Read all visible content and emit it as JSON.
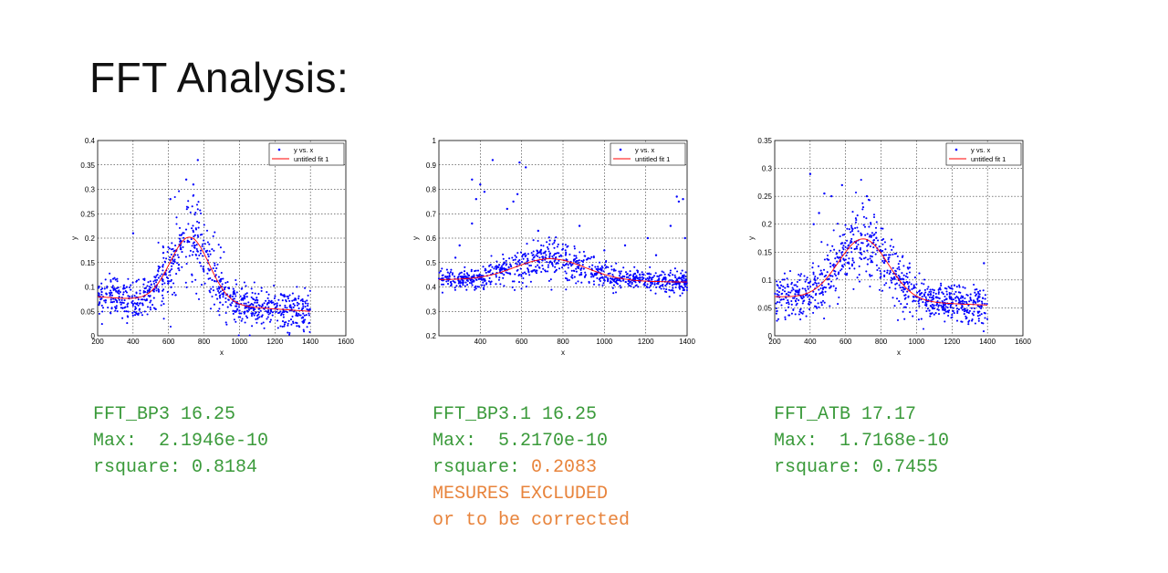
{
  "slide": {
    "title": "FFT Analysis:"
  },
  "panels": [
    {
      "name": "FFT_BP3",
      "line1": "FFT_BP3 16.25",
      "line2": "Max:  2.1946e-10",
      "line3_label": "rsquare: ",
      "line3_value": "0.8184",
      "note1": "",
      "note2": ""
    },
    {
      "name": "FFT_BP3.1",
      "line1": "FFT_BP3.1 16.25",
      "line2": "Max:  5.2170e-10",
      "line3_label": "rsquare: ",
      "line3_value": "0.2083",
      "note1": "MESURES EXCLUDED",
      "note2": "or to be corrected"
    },
    {
      "name": "FFT_ATB",
      "line1": "FFT_ATB 17.17",
      "line2": "Max:  1.7168e-10",
      "line3_label": "rsquare: ",
      "line3_value": "0.7455",
      "note1": "",
      "note2": ""
    }
  ],
  "colors": {
    "points": "#0000ff",
    "fit": "#ff0000",
    "caption": "#3a9a3a",
    "warning": "#e8843c"
  },
  "chart_data": [
    {
      "type": "scatter",
      "xlabel": "x",
      "ylabel": "y",
      "xlim": [
        200,
        1600
      ],
      "ylim": [
        0,
        0.4
      ],
      "xticks": [
        200,
        400,
        600,
        800,
        1000,
        1200,
        1400,
        1600
      ],
      "yticks": [
        0,
        0.05,
        0.1,
        0.15,
        0.2,
        0.25,
        0.3,
        0.35,
        0.4
      ],
      "ytick_labels": [
        "0",
        "0.05",
        "0.1",
        "0.15",
        "0.2",
        "0.25",
        "0.3",
        "0.35",
        "0.4"
      ],
      "grid": true,
      "legend": "top-right",
      "series": [
        {
          "name": "y vs. x",
          "style": "points",
          "x_range": [
            200,
            1400
          ],
          "profile": {
            "base": 0.08,
            "base_end": 0.05,
            "peak": 0.215,
            "peak_x": 720,
            "width": 110,
            "noise": 0.02
          },
          "outliers": [
            [
              765,
              0.36
            ],
            [
              700,
              0.32
            ],
            [
              740,
              0.31
            ],
            [
              610,
              0.28
            ],
            [
              400,
              0.21
            ]
          ]
        },
        {
          "name": "untitled fit 1",
          "style": "line"
        }
      ]
    },
    {
      "type": "scatter",
      "xlabel": "x",
      "ylabel": "y",
      "xlim": [
        200,
        1400
      ],
      "ylim": [
        0.2,
        1.0
      ],
      "xticks": [
        400,
        600,
        800,
        1000,
        1200,
        1400
      ],
      "yticks": [
        0.2,
        0.3,
        0.4,
        0.5,
        0.6,
        0.7,
        0.8,
        0.9,
        1
      ],
      "ytick_labels": [
        "0.2",
        "0.3",
        "0.4",
        "0.5",
        "0.6",
        "0.7",
        "0.8",
        "0.9",
        "1"
      ],
      "grid": true,
      "legend": "top-right",
      "series": [
        {
          "name": "y vs. x",
          "style": "points",
          "x_range": [
            200,
            1400
          ],
          "profile": {
            "base": 0.43,
            "base_end": 0.42,
            "peak": 0.52,
            "peak_x": 740,
            "width": 170,
            "noise": 0.02
          },
          "outliers": [
            [
              360,
              0.84
            ],
            [
              460,
              0.92
            ],
            [
              590,
              0.91
            ],
            [
              620,
              0.89
            ],
            [
              400,
              0.82
            ],
            [
              420,
              0.79
            ],
            [
              380,
              0.76
            ],
            [
              580,
              0.78
            ],
            [
              360,
              0.66
            ],
            [
              530,
              0.72
            ],
            [
              560,
              0.75
            ],
            [
              880,
              0.65
            ],
            [
              1350,
              0.77
            ],
            [
              1380,
              0.76
            ],
            [
              1360,
              0.75
            ],
            [
              1390,
              0.6
            ],
            [
              1320,
              0.65
            ],
            [
              1210,
              0.6
            ],
            [
              1100,
              0.57
            ],
            [
              1000,
              0.55
            ],
            [
              300,
              0.57
            ],
            [
              680,
              0.63
            ],
            [
              760,
              0.59
            ],
            [
              280,
              0.52
            ],
            [
              1250,
              0.53
            ]
          ]
        },
        {
          "name": "untitled fit 1",
          "style": "line"
        }
      ]
    },
    {
      "type": "scatter",
      "xlabel": "x",
      "ylabel": "y",
      "xlim": [
        200,
        1600
      ],
      "ylim": [
        0,
        0.35
      ],
      "xticks": [
        200,
        400,
        600,
        800,
        1000,
        1200,
        1400,
        1600
      ],
      "yticks": [
        0,
        0.05,
        0.1,
        0.15,
        0.2,
        0.25,
        0.3,
        0.35
      ],
      "ytick_labels": [
        "0",
        "0.05",
        "0.1",
        "0.15",
        "0.2",
        "0.25",
        "0.3",
        "0.35"
      ],
      "grid": true,
      "legend": "top-right",
      "series": [
        {
          "name": "y vs. x",
          "style": "points",
          "x_range": [
            200,
            1400
          ],
          "profile": {
            "base": 0.07,
            "base_end": 0.055,
            "peak": 0.18,
            "peak_x": 700,
            "width": 140,
            "noise": 0.017
          },
          "outliers": [
            [
              400,
              0.29
            ],
            [
              480,
              0.255
            ],
            [
              520,
              0.25
            ],
            [
              580,
              0.27
            ],
            [
              420,
              0.2
            ],
            [
              450,
              0.22
            ],
            [
              720,
              0.25
            ],
            [
              1380,
              0.13
            ],
            [
              900,
              0.1
            ]
          ]
        },
        {
          "name": "untitled fit 1",
          "style": "line"
        }
      ]
    }
  ]
}
